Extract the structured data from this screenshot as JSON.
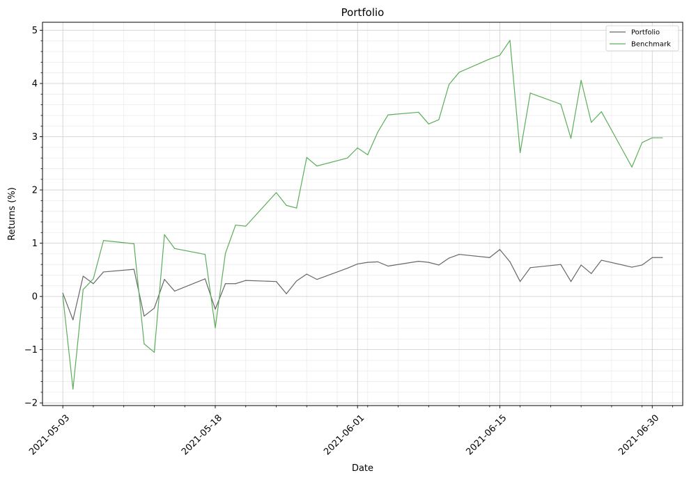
{
  "chart_data": {
    "type": "line",
    "title": "Portfolio",
    "xlabel": "Date",
    "ylabel": "Returns (%)",
    "x": [
      "2021-05-03",
      "2021-05-04",
      "2021-05-05",
      "2021-05-06",
      "2021-05-07",
      "2021-05-10",
      "2021-05-11",
      "2021-05-12",
      "2021-05-13",
      "2021-05-14",
      "2021-05-17",
      "2021-05-18",
      "2021-05-19",
      "2021-05-20",
      "2021-05-21",
      "2021-05-24",
      "2021-05-25",
      "2021-05-26",
      "2021-05-27",
      "2021-05-28",
      "2021-05-31",
      "2021-06-01",
      "2021-06-02",
      "2021-06-03",
      "2021-06-04",
      "2021-06-07",
      "2021-06-08",
      "2021-06-09",
      "2021-06-10",
      "2021-06-11",
      "2021-06-14",
      "2021-06-15",
      "2021-06-16",
      "2021-06-17",
      "2021-06-18",
      "2021-06-21",
      "2021-06-22",
      "2021-06-23",
      "2021-06-24",
      "2021-06-25",
      "2021-06-28",
      "2021-06-29",
      "2021-06-30",
      "2021-07-01"
    ],
    "series": [
      {
        "name": "Portfolio",
        "color": "#666666",
        "values": [
          0.06,
          -0.44,
          0.38,
          0.24,
          0.46,
          0.51,
          -0.37,
          -0.22,
          0.32,
          0.1,
          0.33,
          -0.24,
          0.24,
          0.24,
          0.3,
          0.28,
          0.05,
          0.29,
          0.42,
          0.32,
          0.53,
          0.61,
          0.64,
          0.65,
          0.57,
          0.66,
          0.64,
          0.59,
          0.72,
          0.79,
          0.73,
          0.88,
          0.65,
          0.28,
          0.54,
          0.6,
          0.28,
          0.59,
          0.43,
          0.68,
          0.55,
          0.59,
          0.73,
          0.73
        ]
      },
      {
        "name": "Benchmark",
        "color": "#5aae5a",
        "values": [
          0.01,
          -1.74,
          0.13,
          0.33,
          1.05,
          0.99,
          -0.89,
          -1.05,
          1.16,
          0.9,
          0.79,
          -0.59,
          0.81,
          1.34,
          1.32,
          1.95,
          1.71,
          1.66,
          2.61,
          2.45,
          2.6,
          2.79,
          2.66,
          3.09,
          3.41,
          3.46,
          3.24,
          3.32,
          3.98,
          4.21,
          4.46,
          4.53,
          4.81,
          2.7,
          3.82,
          3.61,
          2.97,
          4.06,
          3.27,
          3.47,
          2.43,
          2.89,
          2.98,
          2.98
        ]
      }
    ],
    "xticks": [
      "2021-05-03",
      "2021-05-18",
      "2021-06-01",
      "2021-06-15",
      "2021-06-30"
    ],
    "yticks": [
      "−2",
      "−1",
      "0",
      "1",
      "2",
      "3",
      "4",
      "5"
    ],
    "ylim": [
      -2.05,
      5.15
    ],
    "xlim": [
      "2021-05-01",
      "2021-07-03"
    ],
    "grid": true,
    "legend_position": "top-right"
  }
}
